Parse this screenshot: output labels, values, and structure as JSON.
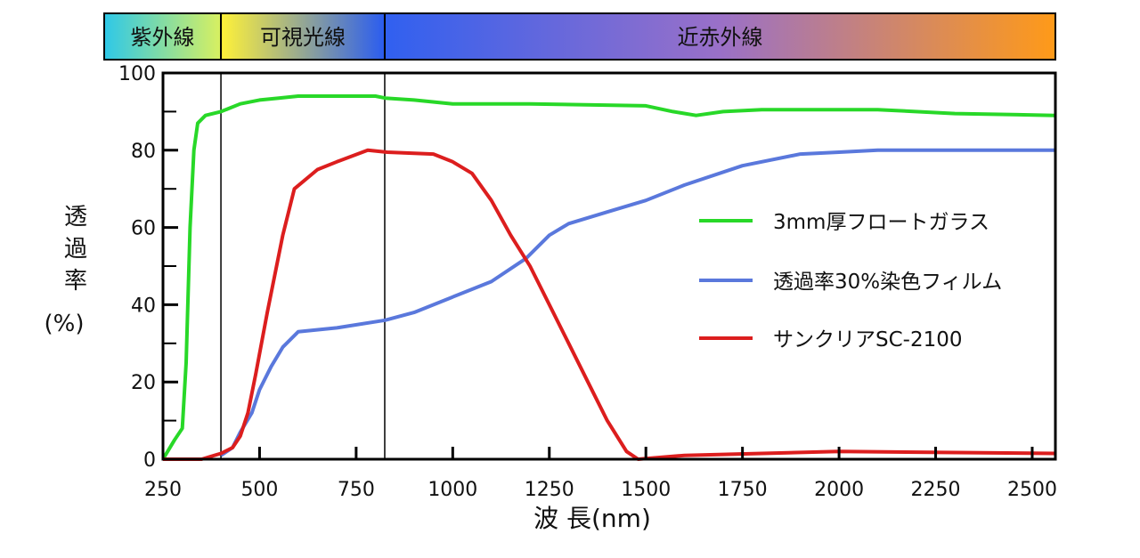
{
  "chart_data": {
    "type": "line",
    "title": "",
    "xlabel": "波 長(nm)",
    "ylabel_lines": [
      "透",
      "過",
      "率",
      "(%)"
    ],
    "xlim": [
      250,
      2560
    ],
    "ylim": [
      0,
      100
    ],
    "xticks": [
      250,
      500,
      750,
      1000,
      1250,
      1500,
      1750,
      2000,
      2250,
      2500
    ],
    "yticks": [
      0,
      20,
      40,
      60,
      80,
      100
    ],
    "region_boundaries": [
      400,
      824
    ],
    "regions": [
      {
        "label": "紫外線",
        "from": 250,
        "to": 400,
        "colors": [
          "#2ec8e8",
          "#d8f060"
        ]
      },
      {
        "label": "可視光線",
        "from": 400,
        "to": 824,
        "colors": [
          "#fff238",
          "#2a5cf0"
        ]
      },
      {
        "label": "近赤外線",
        "from": 824,
        "to": 2560,
        "colors": [
          "#3060f0",
          "#9a70c8",
          "#ff9a18"
        ]
      }
    ],
    "legend_position": "right-middle",
    "series": [
      {
        "name": "3mm厚フロートガラス",
        "color": "#28d828",
        "x": [
          250,
          280,
          300,
          310,
          320,
          330,
          340,
          360,
          400,
          450,
          500,
          550,
          600,
          700,
          800,
          825,
          900,
          1000,
          1200,
          1500,
          1570,
          1630,
          1700,
          1800,
          2000,
          2100,
          2300,
          2560
        ],
        "y": [
          0,
          5,
          8,
          25,
          60,
          80,
          87,
          89,
          90,
          92,
          93,
          93.5,
          94,
          94,
          94,
          93.5,
          93,
          92,
          92,
          91.5,
          90,
          89,
          90,
          90.5,
          90.5,
          90.5,
          89.5,
          89
        ]
      },
      {
        "name": "透過率30%染色フィルム",
        "color": "#5a78dc",
        "x": [
          400,
          430,
          450,
          480,
          500,
          530,
          560,
          600,
          700,
          825,
          900,
          1000,
          1100,
          1190,
          1250,
          1300,
          1400,
          1500,
          1600,
          1750,
          1900,
          2000,
          2100,
          2560
        ],
        "y": [
          1,
          3,
          7,
          12,
          18,
          24,
          29,
          33,
          34,
          36,
          38,
          42,
          46,
          52,
          58,
          61,
          64,
          67,
          71,
          76,
          79,
          79.5,
          80,
          80
        ]
      },
      {
        "name": "サンクリアSC-2100",
        "color": "#dc1e1e",
        "x": [
          250,
          350,
          400,
          430,
          450,
          470,
          490,
          520,
          560,
          590,
          650,
          700,
          780,
          830,
          950,
          1000,
          1050,
          1100,
          1150,
          1200,
          1250,
          1300,
          1350,
          1400,
          1450,
          1480,
          1600,
          2000,
          2560
        ],
        "y": [
          0,
          0,
          1.5,
          3,
          6,
          12,
          22,
          38,
          58,
          70,
          75,
          77,
          80,
          79.5,
          79,
          77,
          74,
          67,
          58,
          50,
          40,
          30,
          20,
          10,
          2,
          0,
          1,
          2,
          1.5
        ]
      }
    ]
  }
}
